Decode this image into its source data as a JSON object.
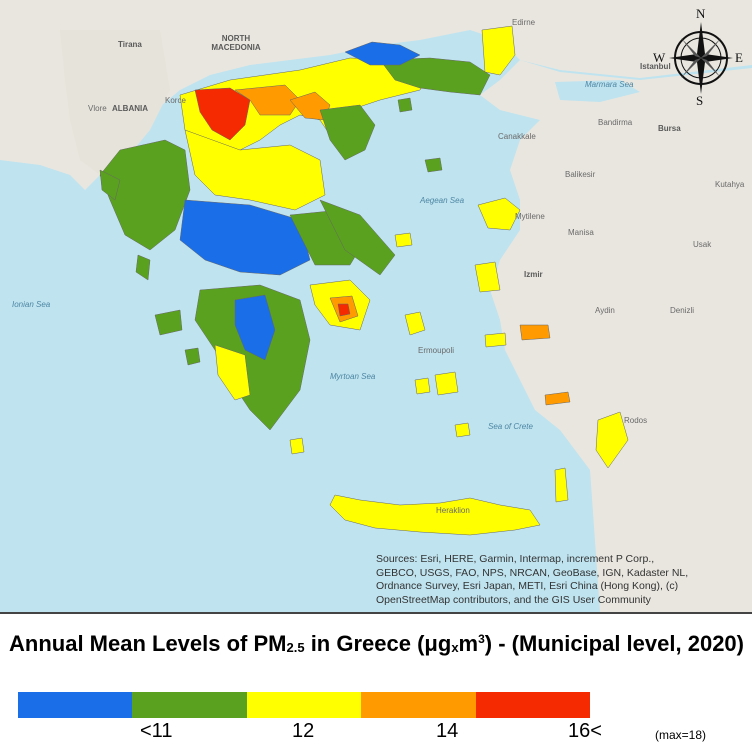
{
  "title": {
    "prefix": "Annual Mean Levels of PM",
    "pm_subscript": "2.5",
    "middle": " in Greece (μg",
    "times": "x",
    " unit_m": " m",
    "unit_exp": "3",
    "suffix": ") - (Municipal level, 2020)"
  },
  "legend": {
    "colors": [
      "#1a6ee8",
      "#5aa11f",
      "#ffff00",
      "#ff9a00",
      "#f52a00",
      ""
    ],
    "bins": [
      {
        "color": "#1a6ee8"
      },
      {
        "color": "#5aa11f"
      },
      {
        "color": "#ffff00"
      },
      {
        "color": "#ff9a00"
      },
      {
        "color": "#f52a00"
      }
    ],
    "ticks": [
      "<11",
      "12",
      "14",
      "16<"
    ],
    "max_note": "(max=18)"
  },
  "compass": {
    "n": "N",
    "s": "S",
    "e": "E",
    "w": "W"
  },
  "sources": [
    "Sources: Esri, HERE, Garmin, Intermap, increment P Corp.,",
    "GEBCO, USGS, FAO, NPS, NRCAN, GeoBase, IGN, Kadaster NL,",
    "Ordnance Survey, Esri Japan, METI, Esri China (Hong Kong), (c)",
    "OpenStreetMap contributors, and the GIS User Community"
  ],
  "places": {
    "tirana": "Tirana",
    "north_macedonia": "NORTH MACEDONIA",
    "albania": "ALBANIA",
    "vlore": "Vlore",
    "korce": "Korce",
    "edirne": "Edirne",
    "istanbul": "Istanbul",
    "marmara_sea": "Marmara Sea",
    "canakkale": "Canakkale",
    "bandirma": "Bandirma",
    "bursa": "Bursa",
    "balikesir": "Balikesir",
    "kutahya": "Kutahya",
    "aegean_sea": "Aegean Sea",
    "mytilene": "Mytilene",
    "manisa": "Manisa",
    "usak": "Usak",
    "izmir": "Izmir",
    "aydin": "Aydin",
    "denizli": "Denizli",
    "ionian_sea": "Ionian Sea",
    "ermoupoli": "Ermoupoli",
    "myrtoan_sea": "Myrtoan Sea",
    "sea_of_crete": "Sea of Crete",
    "rodos": "Rodos",
    "heraklion": "Heraklion"
  }
}
